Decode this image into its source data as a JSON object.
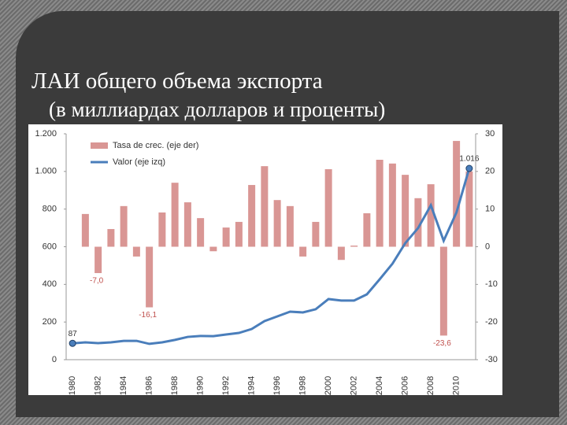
{
  "chart_data": {
    "type": "combo",
    "title": "ЛАИ общего объема экспорта",
    "subtitle": "(в миллиардах долларов и проценты)",
    "categories": [
      "1980",
      null,
      "1982",
      null,
      "1984",
      null,
      "1986",
      null,
      "1988",
      null,
      "1990",
      null,
      "1992",
      null,
      "1994",
      null,
      "1996",
      null,
      "1998",
      null,
      "2000",
      null,
      "2002",
      null,
      "2004",
      null,
      "2006",
      null,
      "2008",
      null,
      "2010",
      null
    ],
    "series": [
      {
        "name": "Tasa de crec. (eje der)",
        "type": "bar",
        "axis": "y2",
        "color": "#d99694",
        "values": [
          0,
          8.7,
          -7.0,
          4.7,
          10.8,
          -2.6,
          -16.1,
          9.1,
          17.0,
          11.8,
          7.6,
          -1.2,
          5.1,
          6.6,
          16.4,
          21.4,
          12.4,
          10.8,
          -2.6,
          6.6,
          20.6,
          -3.5,
          0.3,
          8.9,
          23.1,
          22.1,
          19.1,
          12.9,
          16.6,
          -23.6,
          28.1,
          20.0
        ],
        "value_labels": [
          null,
          null,
          "-7,0",
          null,
          null,
          null,
          "-16,1",
          null,
          null,
          null,
          null,
          null,
          null,
          null,
          null,
          null,
          null,
          null,
          null,
          null,
          null,
          null,
          null,
          null,
          null,
          null,
          null,
          null,
          null,
          "-23,6",
          null,
          null
        ]
      },
      {
        "name": "Valor (eje izq)",
        "type": "line",
        "color": "#4a7ebb",
        "values": [
          87,
          92,
          88,
          92,
          100,
          100,
          84,
          92,
          105,
          121,
          126,
          125,
          134,
          142,
          163,
          205,
          230,
          255,
          251,
          268,
          322,
          314,
          314,
          347,
          427,
          510,
          619,
          699,
          820,
          632,
          782,
          1016
        ],
        "value_labels": [
          "87",
          null,
          null,
          null,
          null,
          null,
          null,
          null,
          null,
          null,
          null,
          null,
          null,
          null,
          null,
          null,
          null,
          null,
          null,
          null,
          null,
          null,
          null,
          null,
          null,
          null,
          null,
          null,
          null,
          null,
          null,
          "1.016"
        ]
      }
    ],
    "ylim": [
      0,
      1200
    ],
    "yticks": [
      0,
      200,
      400,
      600,
      800,
      {
        "value": 1000,
        "label": "1.000"
      },
      {
        "value": 1200,
        "label": "1.200"
      }
    ],
    "y2lim": [
      -30,
      30
    ],
    "y2ticks": [
      -30,
      -20,
      -10,
      0,
      10,
      20,
      30
    ],
    "legend": "upper-left"
  }
}
